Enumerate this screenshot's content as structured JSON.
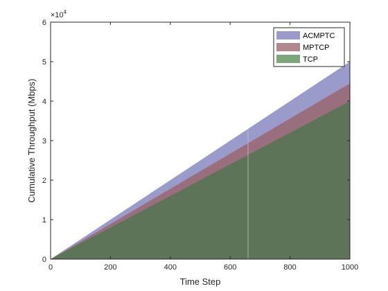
{
  "chart_data": {
    "type": "area",
    "xlabel": "Time Step",
    "ylabel": "Cumulative Throughput (Mbps)",
    "xlim": [
      0,
      1000
    ],
    "ylim": [
      0,
      60000
    ],
    "x_ticks": [
      0,
      200,
      400,
      600,
      800,
      1000
    ],
    "y_ticks": [
      0,
      10000,
      20000,
      30000,
      40000,
      50000,
      60000
    ],
    "y_tick_labels": [
      "0",
      "1",
      "2",
      "3",
      "4",
      "5",
      "6"
    ],
    "y_exponent_base": "×10",
    "y_exponent_power": "4",
    "grid": false,
    "legend_position": "top-right",
    "x": [
      0,
      1000
    ],
    "series": [
      {
        "name": "ACMPTC",
        "values": [
          0,
          50000
        ],
        "color": "#9a9bcb"
      },
      {
        "name": "MPTCP",
        "values": [
          0,
          44500
        ],
        "color": "#996e7d"
      },
      {
        "name": "TCP",
        "values": [
          0,
          40000
        ],
        "color": "#5e7458"
      }
    ],
    "legend_swatch_colors": [
      "#9a9bcb",
      "#b18890",
      "#7fa57a"
    ]
  }
}
